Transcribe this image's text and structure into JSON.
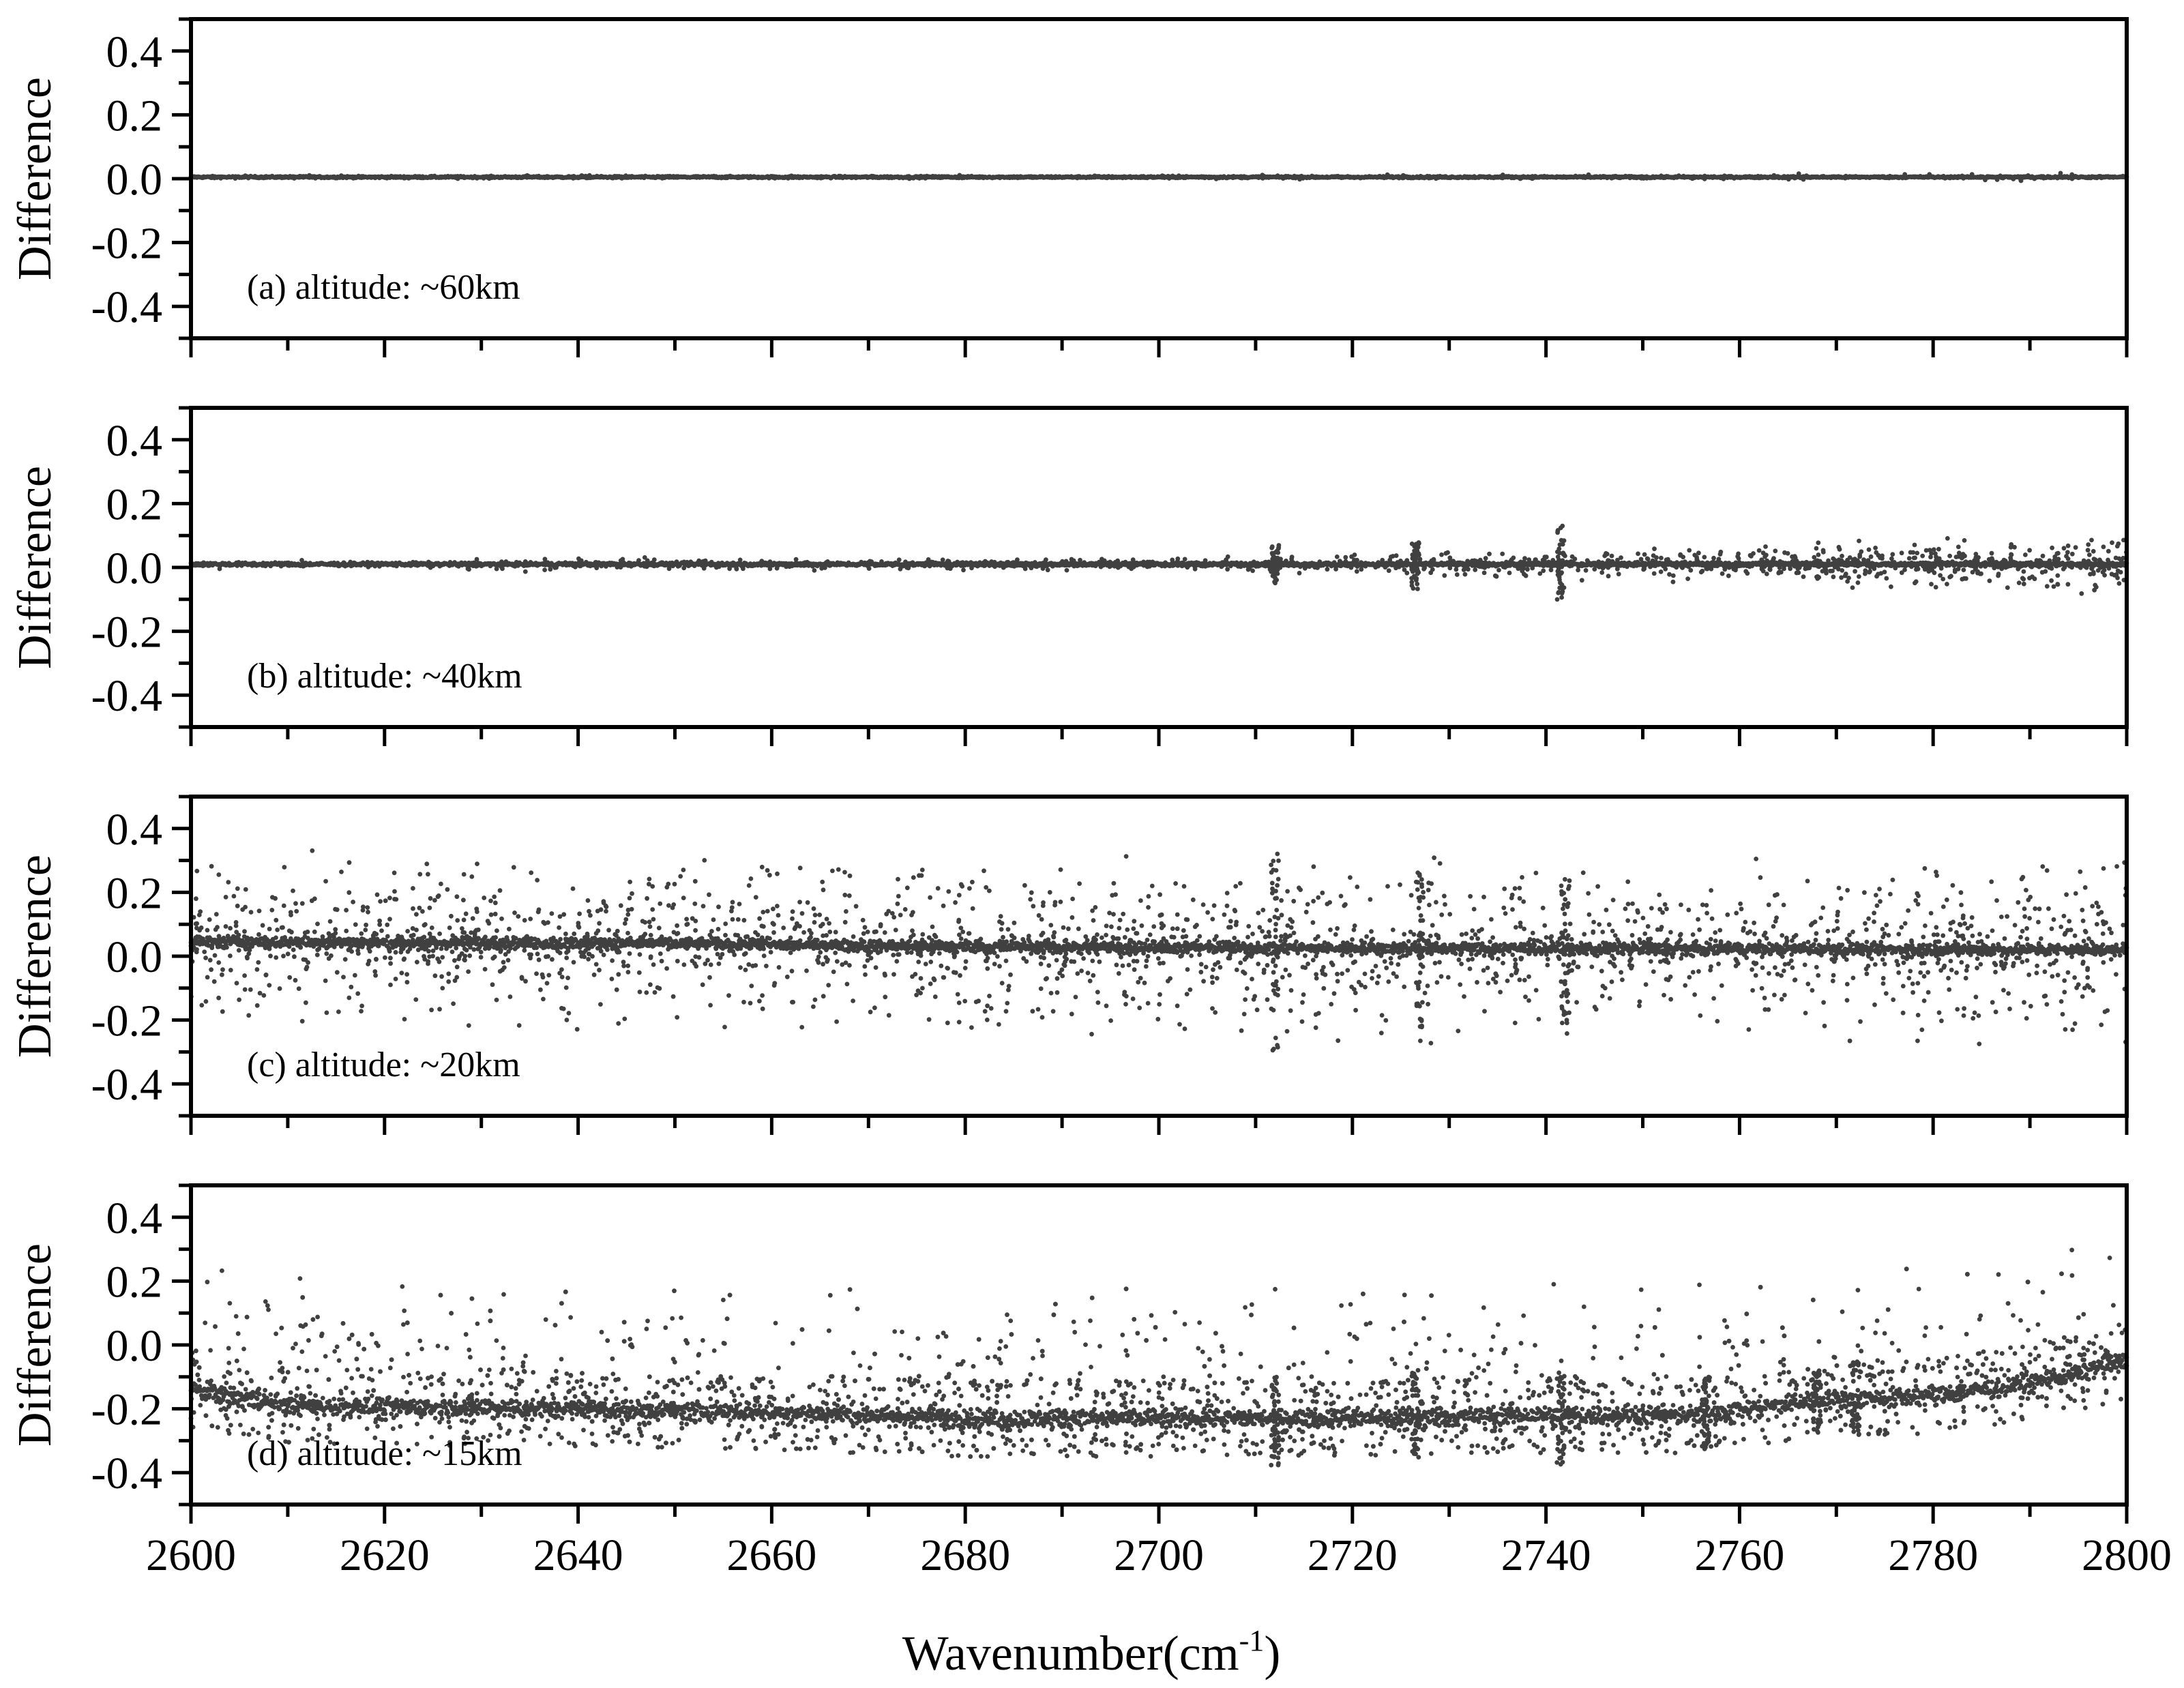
{
  "chart_data": {
    "type": "scatter",
    "layout": "4 vertically stacked panels sharing x axis",
    "xlabel": "Wavenumber(cm",
    "xlabel_sup": "-1",
    "xlabel_close": ")",
    "xlim": [
      2600,
      2800
    ],
    "x_ticks": [
      2600,
      2620,
      2640,
      2660,
      2680,
      2700,
      2720,
      2740,
      2760,
      2780,
      2800
    ],
    "x_tick_labels": [
      "2600",
      "2620",
      "2640",
      "2660",
      "2680",
      "2700",
      "2720",
      "2740",
      "2760",
      "2780",
      "2800"
    ],
    "marker_color": "#404040",
    "grid": false,
    "legend": "none",
    "panels": [
      {
        "label": "(a) altitude: ~60km",
        "ylabel": "Difference",
        "ylim": [
          -0.5,
          0.5
        ],
        "y_ticks": [
          0.4,
          0.2,
          0.0,
          -0.2,
          -0.4
        ],
        "y_tick_labels": [
          "0.4",
          "0.2",
          "0.0",
          "-0.2",
          "-0.4"
        ],
        "series": [
          {
            "description_points": "dense band around baseline",
            "baseline": [
              [
                2600,
                0.005
              ],
              [
                2800,
                0.005
              ]
            ],
            "core_spread": 0.002,
            "outlier_envelope": [
              [
                2600,
                0.006
              ],
              [
                2700,
                0.008
              ],
              [
                2760,
                0.01
              ],
              [
                2800,
                0.015
              ]
            ]
          }
        ]
      },
      {
        "label": "(b) altitude: ~40km",
        "ylabel": "Difference",
        "ylim": [
          -0.5,
          0.5
        ],
        "y_ticks": [
          0.4,
          0.2,
          0.0,
          -0.2,
          -0.4
        ],
        "y_tick_labels": [
          "0.4",
          "0.2",
          "0.0",
          "-0.2",
          "-0.4"
        ],
        "series": [
          {
            "baseline": [
              [
                2600,
                0.01
              ],
              [
                2800,
                0.01
              ]
            ],
            "core_spread": 0.004,
            "outlier_envelope": [
              [
                2600,
                0.03
              ],
              [
                2700,
                0.02
              ],
              [
                2740,
                0.05
              ],
              [
                2756,
                0.06
              ],
              [
                2770,
                0.08
              ],
              [
                2800,
                0.1
              ]
            ],
            "spikes": [
              [
                2712,
                0.06
              ],
              [
                2726.5,
                0.08
              ],
              [
                2741.5,
                0.12
              ]
            ]
          }
        ]
      },
      {
        "label": "(c) altitude: ~20km",
        "ylabel": "Difference",
        "ylim": [
          -0.5,
          0.5
        ],
        "y_ticks": [
          0.4,
          0.2,
          0.0,
          -0.2,
          -0.4
        ],
        "y_tick_labels": [
          "0.4",
          "0.2",
          "0.0",
          "-0.2",
          "-0.4"
        ],
        "series": [
          {
            "baseline": [
              [
                2600,
                0.045
              ],
              [
                2650,
                0.04
              ],
              [
                2680,
                0.03
              ],
              [
                2720,
                0.025
              ],
              [
                2800,
                0.02
              ]
            ],
            "core_spread": 0.012,
            "outlier_envelope": [
              [
                2600,
                0.3
              ],
              [
                2700,
                0.3
              ],
              [
                2756,
                0.3
              ],
              [
                2800,
                0.35
              ]
            ],
            "spikes": [
              [
                2712,
                0.33
              ],
              [
                2727,
                0.25
              ],
              [
                2742,
                0.25
              ]
            ]
          }
        ]
      },
      {
        "label": "(d) altitude: ~15km",
        "ylabel": "Difference",
        "ylim": [
          -0.5,
          0.5
        ],
        "y_ticks": [
          0.4,
          0.2,
          0.0,
          -0.2,
          -0.4
        ],
        "y_tick_labels": [
          "0.4",
          "0.2",
          "0.0",
          "-0.2",
          "-0.4"
        ],
        "series": [
          {
            "baseline": [
              [
                2600,
                -0.14
              ],
              [
                2610,
                -0.19
              ],
              [
                2640,
                -0.2
              ],
              [
                2660,
                -0.21
              ],
              [
                2680,
                -0.23
              ],
              [
                2700,
                -0.23
              ],
              [
                2720,
                -0.23
              ],
              [
                2740,
                -0.22
              ],
              [
                2756,
                -0.22
              ],
              [
                2760,
                -0.2
              ],
              [
                2770,
                -0.17
              ],
              [
                2780,
                -0.16
              ],
              [
                2790,
                -0.12
              ],
              [
                2800,
                -0.05
              ]
            ],
            "core_spread": 0.02,
            "outlier_envelope": [
              [
                2600,
                0.17
              ],
              [
                2680,
                0.18
              ],
              [
                2740,
                0.15
              ],
              [
                2790,
                0.22
              ],
              [
                2800,
                0.18
              ]
            ],
            "spikes": [
              [
                2712,
                0.15
              ],
              [
                2726.5,
                0.15
              ],
              [
                2741.5,
                0.16
              ],
              [
                2756.5,
                0.12
              ],
              [
                2768,
                0.1
              ],
              [
                2772,
                0.12
              ]
            ]
          }
        ]
      }
    ]
  }
}
